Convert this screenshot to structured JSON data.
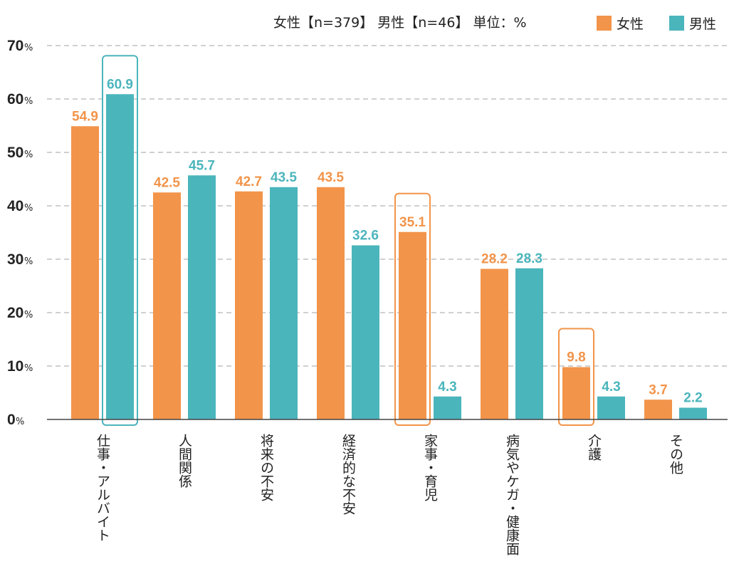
{
  "header": {
    "sample_text": "女性【n=379】 男性【n=46】 単位：%"
  },
  "colors": {
    "female": "#f2944a",
    "male": "#4bb5bc",
    "gridline": "#b5b5b5",
    "axis": "#444444"
  },
  "chart_data": {
    "type": "bar",
    "title": "",
    "xlabel": "",
    "ylabel": "",
    "ylim": [
      0,
      70
    ],
    "yticks": [
      0,
      10,
      20,
      30,
      40,
      50,
      60,
      70
    ],
    "ytick_unit": "%",
    "grid": true,
    "legend_position": "top-right",
    "categories": [
      "仕事・アルバイト",
      "人間関係",
      "将来の不安",
      "経済的な不安",
      "家事・育児",
      "病気やケガ・健康面",
      "介護",
      "その他"
    ],
    "series": [
      {
        "name": "女性",
        "values": [
          54.9,
          42.5,
          42.7,
          43.5,
          35.1,
          28.2,
          9.8,
          3.7
        ]
      },
      {
        "name": "男性",
        "values": [
          60.9,
          45.7,
          43.5,
          32.6,
          4.3,
          28.3,
          4.3,
          2.2
        ]
      }
    ],
    "highlights": [
      {
        "category": "仕事・アルバイト",
        "series": "男性"
      },
      {
        "category": "家事・育児",
        "series": "女性"
      },
      {
        "category": "介護",
        "series": "女性"
      }
    ]
  }
}
